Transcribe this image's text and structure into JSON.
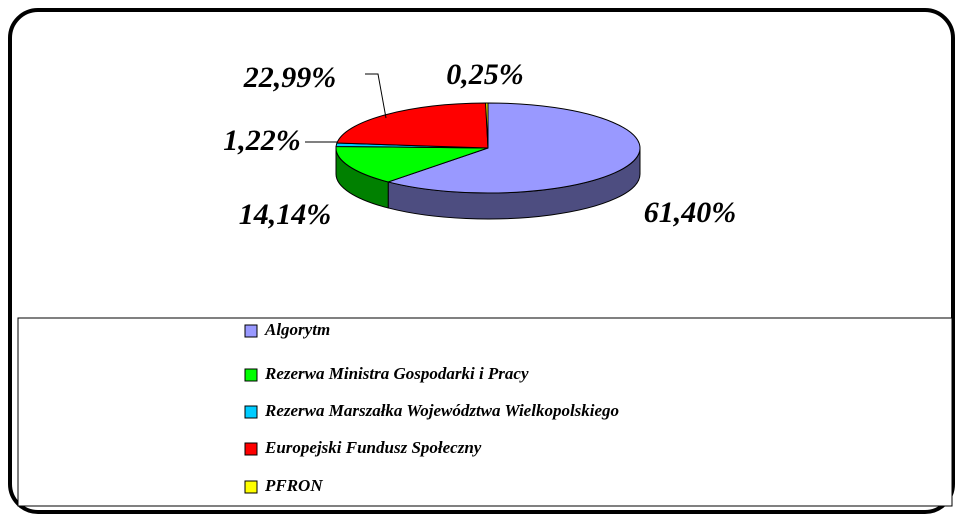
{
  "chart_data": {
    "type": "pie",
    "categories": [
      "Algorytm",
      "Rezerwa Ministra Gospodarki i Pracy",
      "Rezerwa Marszałka Województwa Wielkopolskiego",
      "Europejski Fundusz Społeczny",
      "PFRON"
    ],
    "values": [
      61.4,
      14.14,
      1.22,
      22.99,
      0.25
    ],
    "value_labels": [
      "61,40%",
      "14,14%",
      "1,22%",
      "22,99%",
      "0,25%"
    ],
    "colors": [
      "#9999ff",
      "#00ff00",
      "#00ccff",
      "#ff0000",
      "#ffff00"
    ]
  }
}
